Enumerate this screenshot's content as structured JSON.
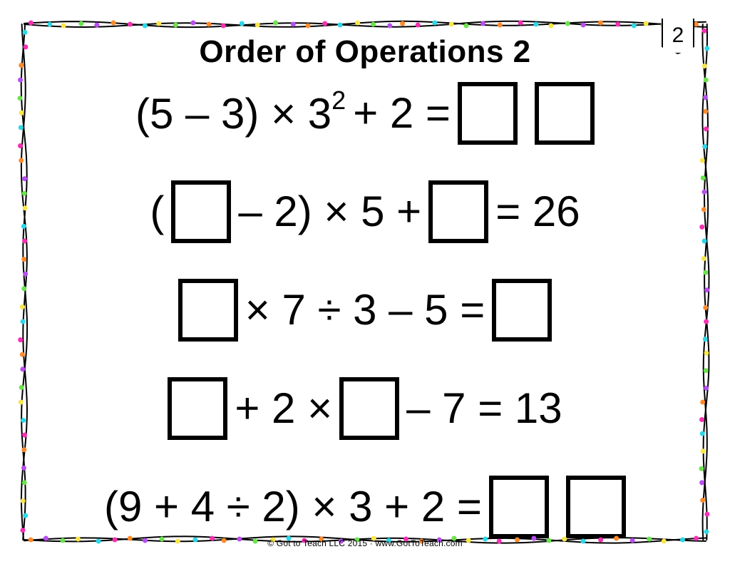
{
  "page_number": "2",
  "title": "Order of Operations 2",
  "footer": "© Got to Teach LLC 2015 · www.GotToTeach.com",
  "border": {
    "stroke_color": "#000000",
    "stroke_width": 2,
    "dot_colors": [
      "#f72fb3",
      "#2bd8e8",
      "#f9e64a",
      "#6ae34d",
      "#b84ef0",
      "#ff8a2a"
    ],
    "dot_radius": 3.5
  },
  "problems": [
    {
      "tokens": [
        {
          "type": "text",
          "value": "(5 – 3) × 3"
        },
        {
          "type": "sup",
          "value": "2"
        },
        {
          "type": "text",
          "value": " + 2 = "
        },
        {
          "type": "box"
        },
        {
          "type": "gap"
        },
        {
          "type": "box"
        }
      ]
    },
    {
      "tokens": [
        {
          "type": "text",
          "value": "("
        },
        {
          "type": "box"
        },
        {
          "type": "text",
          "value": " – 2) × 5 + "
        },
        {
          "type": "box"
        },
        {
          "type": "text",
          "value": " = 26"
        }
      ]
    },
    {
      "tokens": [
        {
          "type": "box"
        },
        {
          "type": "text",
          "value": " × 7 ÷ 3 – 5 = "
        },
        {
          "type": "box"
        }
      ]
    },
    {
      "tokens": [
        {
          "type": "box"
        },
        {
          "type": "text",
          "value": " + 2 × "
        },
        {
          "type": "box"
        },
        {
          "type": "text",
          "value": " – 7 = 13"
        }
      ]
    },
    {
      "tokens": [
        {
          "type": "text",
          "value": "(9 + 4 ÷ 2) × 3 + 2 = "
        },
        {
          "type": "box"
        },
        {
          "type": "gap"
        },
        {
          "type": "box"
        }
      ]
    }
  ]
}
